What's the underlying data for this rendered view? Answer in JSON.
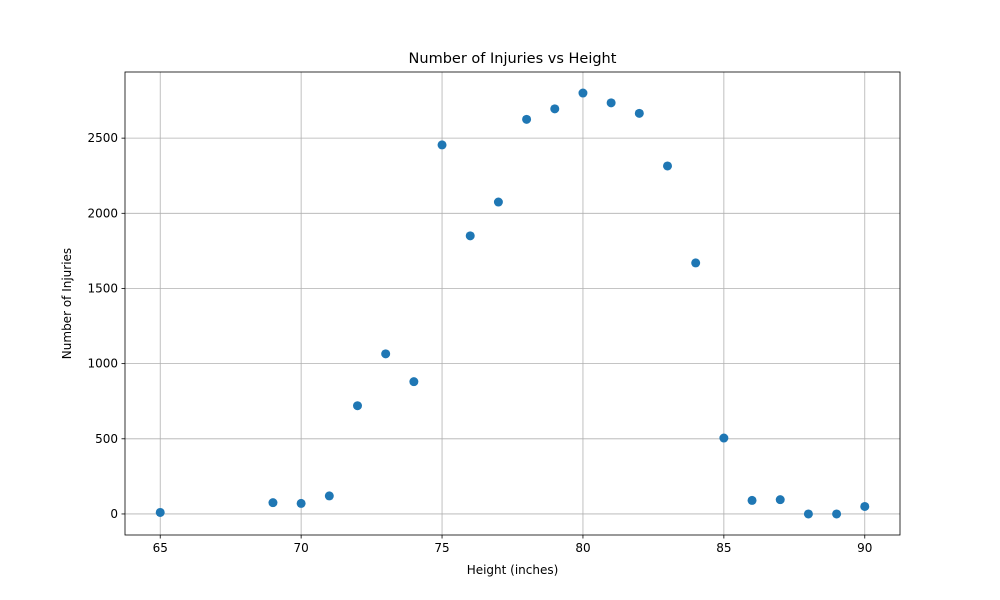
{
  "chart_data": {
    "type": "scatter",
    "title": "Number of Injuries vs Height",
    "xlabel": "Height (inches)",
    "ylabel": "Number of Injuries",
    "xlim": [
      63.75,
      91.25
    ],
    "ylim": [
      -140,
      2940
    ],
    "xticks": [
      65,
      70,
      75,
      80,
      85,
      90
    ],
    "yticks": [
      0,
      500,
      1000,
      1500,
      2000,
      2500
    ],
    "grid": true,
    "marker_color": "#1f77b4",
    "points": [
      {
        "x": 65,
        "y": 10
      },
      {
        "x": 69,
        "y": 75
      },
      {
        "x": 70,
        "y": 70
      },
      {
        "x": 71,
        "y": 120
      },
      {
        "x": 72,
        "y": 720
      },
      {
        "x": 73,
        "y": 1065
      },
      {
        "x": 74,
        "y": 880
      },
      {
        "x": 75,
        "y": 2455
      },
      {
        "x": 76,
        "y": 1850
      },
      {
        "x": 77,
        "y": 2075
      },
      {
        "x": 78,
        "y": 2625
      },
      {
        "x": 79,
        "y": 2695
      },
      {
        "x": 80,
        "y": 2800
      },
      {
        "x": 81,
        "y": 2735
      },
      {
        "x": 82,
        "y": 2665
      },
      {
        "x": 83,
        "y": 2315
      },
      {
        "x": 84,
        "y": 1670
      },
      {
        "x": 85,
        "y": 505
      },
      {
        "x": 86,
        "y": 90
      },
      {
        "x": 87,
        "y": 95
      },
      {
        "x": 88,
        "y": 0
      },
      {
        "x": 89,
        "y": 0
      },
      {
        "x": 90,
        "y": 50
      }
    ]
  }
}
